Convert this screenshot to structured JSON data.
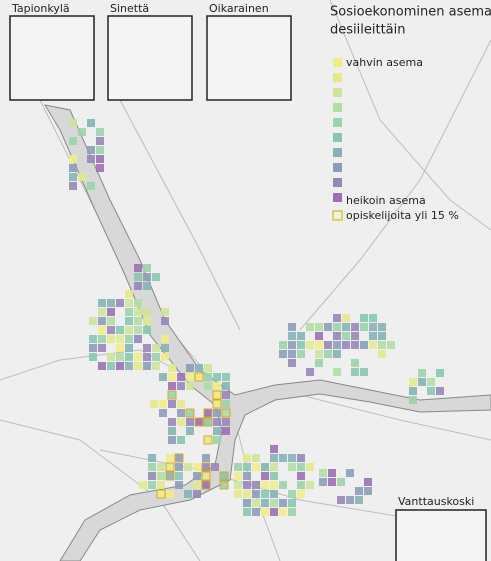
{
  "legend": {
    "title": [
      "Sosioekonominen asema",
      "desiileittäin"
    ],
    "top_label": "vahvin asema",
    "bottom_label": "heikoin asema",
    "outline_label": "opiskelijoita yli 15 %"
  },
  "insets": [
    {
      "label": "Tapionkylä"
    },
    {
      "label": "Sinettä"
    },
    {
      "label": "Oikarainen"
    },
    {
      "label": "Vanttauskoski"
    }
  ]
}
